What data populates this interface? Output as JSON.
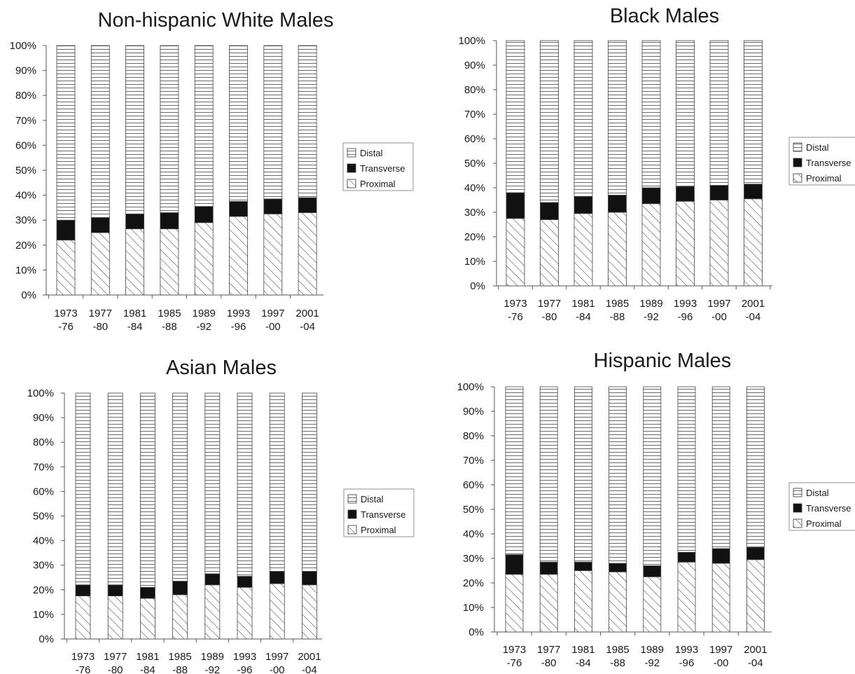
{
  "charts_meta": {
    "legend_labels": [
      "Distal",
      "Transverse",
      "Proximal"
    ],
    "y_tick_labels": [
      "0%",
      "10%",
      "20%",
      "30%",
      "40%",
      "50%",
      "60%",
      "70%",
      "80%",
      "90%",
      "100%"
    ],
    "category_lines": [
      [
        "1973",
        "-76"
      ],
      [
        "1977",
        "-80"
      ],
      [
        "1981",
        "-84"
      ],
      [
        "1985",
        "-88"
      ],
      [
        "1989",
        "-92"
      ],
      [
        "1993",
        "-96"
      ],
      [
        "1997",
        "-00"
      ],
      [
        "2001",
        "-04"
      ]
    ],
    "colors": {
      "distal_fill": "#ffffff",
      "transverse_fill": "#111111",
      "proximal_hatch": "#333333",
      "axis": "#555555"
    }
  },
  "chart_data": [
    {
      "type": "bar",
      "stacked": true,
      "title": "Non-hispanic White Males",
      "categories": [
        "1973-76",
        "1977-80",
        "1981-84",
        "1985-88",
        "1989-92",
        "1993-96",
        "1997-00",
        "2001-04"
      ],
      "ylim": [
        0,
        100
      ],
      "legend_position": "right",
      "series": [
        {
          "name": "Proximal",
          "values": [
            22,
            25,
            26.5,
            26.5,
            29,
            31.5,
            32.5,
            33
          ]
        },
        {
          "name": "Transverse",
          "values": [
            8,
            6,
            6,
            6.5,
            6.5,
            6,
            6,
            6
          ]
        },
        {
          "name": "Distal",
          "values": [
            70,
            69,
            67.5,
            67,
            64.5,
            62.5,
            61.5,
            61
          ]
        }
      ]
    },
    {
      "type": "bar",
      "stacked": true,
      "title": "Black Males",
      "categories": [
        "1973-76",
        "1977-80",
        "1981-84",
        "1985-88",
        "1989-92",
        "1993-96",
        "1997-00",
        "2001-04"
      ],
      "ylim": [
        0,
        100
      ],
      "legend_position": "right",
      "series": [
        {
          "name": "Proximal",
          "values": [
            27.5,
            27,
            29.5,
            30,
            33.5,
            34.5,
            35,
            35.5
          ]
        },
        {
          "name": "Transverse",
          "values": [
            10.5,
            7,
            7,
            7,
            6.5,
            6,
            6,
            6
          ]
        },
        {
          "name": "Distal",
          "values": [
            62,
            66,
            63.5,
            63,
            60,
            59.5,
            59,
            58.5
          ]
        }
      ]
    },
    {
      "type": "bar",
      "stacked": true,
      "title": "Asian Males",
      "categories": [
        "1973-76",
        "1977-80",
        "1981-84",
        "1985-88",
        "1989-92",
        "1993-96",
        "1997-00",
        "2001-04"
      ],
      "ylim": [
        0,
        100
      ],
      "legend_position": "right",
      "series": [
        {
          "name": "Proximal",
          "values": [
            17.5,
            17.5,
            16.5,
            18,
            22,
            21,
            22.5,
            22
          ]
        },
        {
          "name": "Transverse",
          "values": [
            4.5,
            4.5,
            4.5,
            5.5,
            4.5,
            4.5,
            5,
            5.5
          ]
        },
        {
          "name": "Distal",
          "values": [
            78,
            78,
            79,
            76.5,
            73.5,
            74.5,
            72.5,
            72.5
          ]
        }
      ]
    },
    {
      "type": "bar",
      "stacked": true,
      "title": "Hispanic Males",
      "categories": [
        "1973-76",
        "1977-80",
        "1981-84",
        "1985-88",
        "1989-92",
        "1993-96",
        "1997-00",
        "2001-04"
      ],
      "ylim": [
        0,
        100
      ],
      "legend_position": "right",
      "series": [
        {
          "name": "Proximal",
          "values": [
            23.5,
            23.5,
            25,
            24.5,
            22.5,
            28.5,
            28,
            29.5
          ]
        },
        {
          "name": "Transverse",
          "values": [
            8,
            5,
            3.5,
            3.5,
            4.5,
            4,
            6,
            5
          ]
        },
        {
          "name": "Distal",
          "values": [
            68.5,
            71.5,
            71.5,
            72,
            73,
            67.5,
            66,
            65.5
          ]
        }
      ]
    }
  ]
}
